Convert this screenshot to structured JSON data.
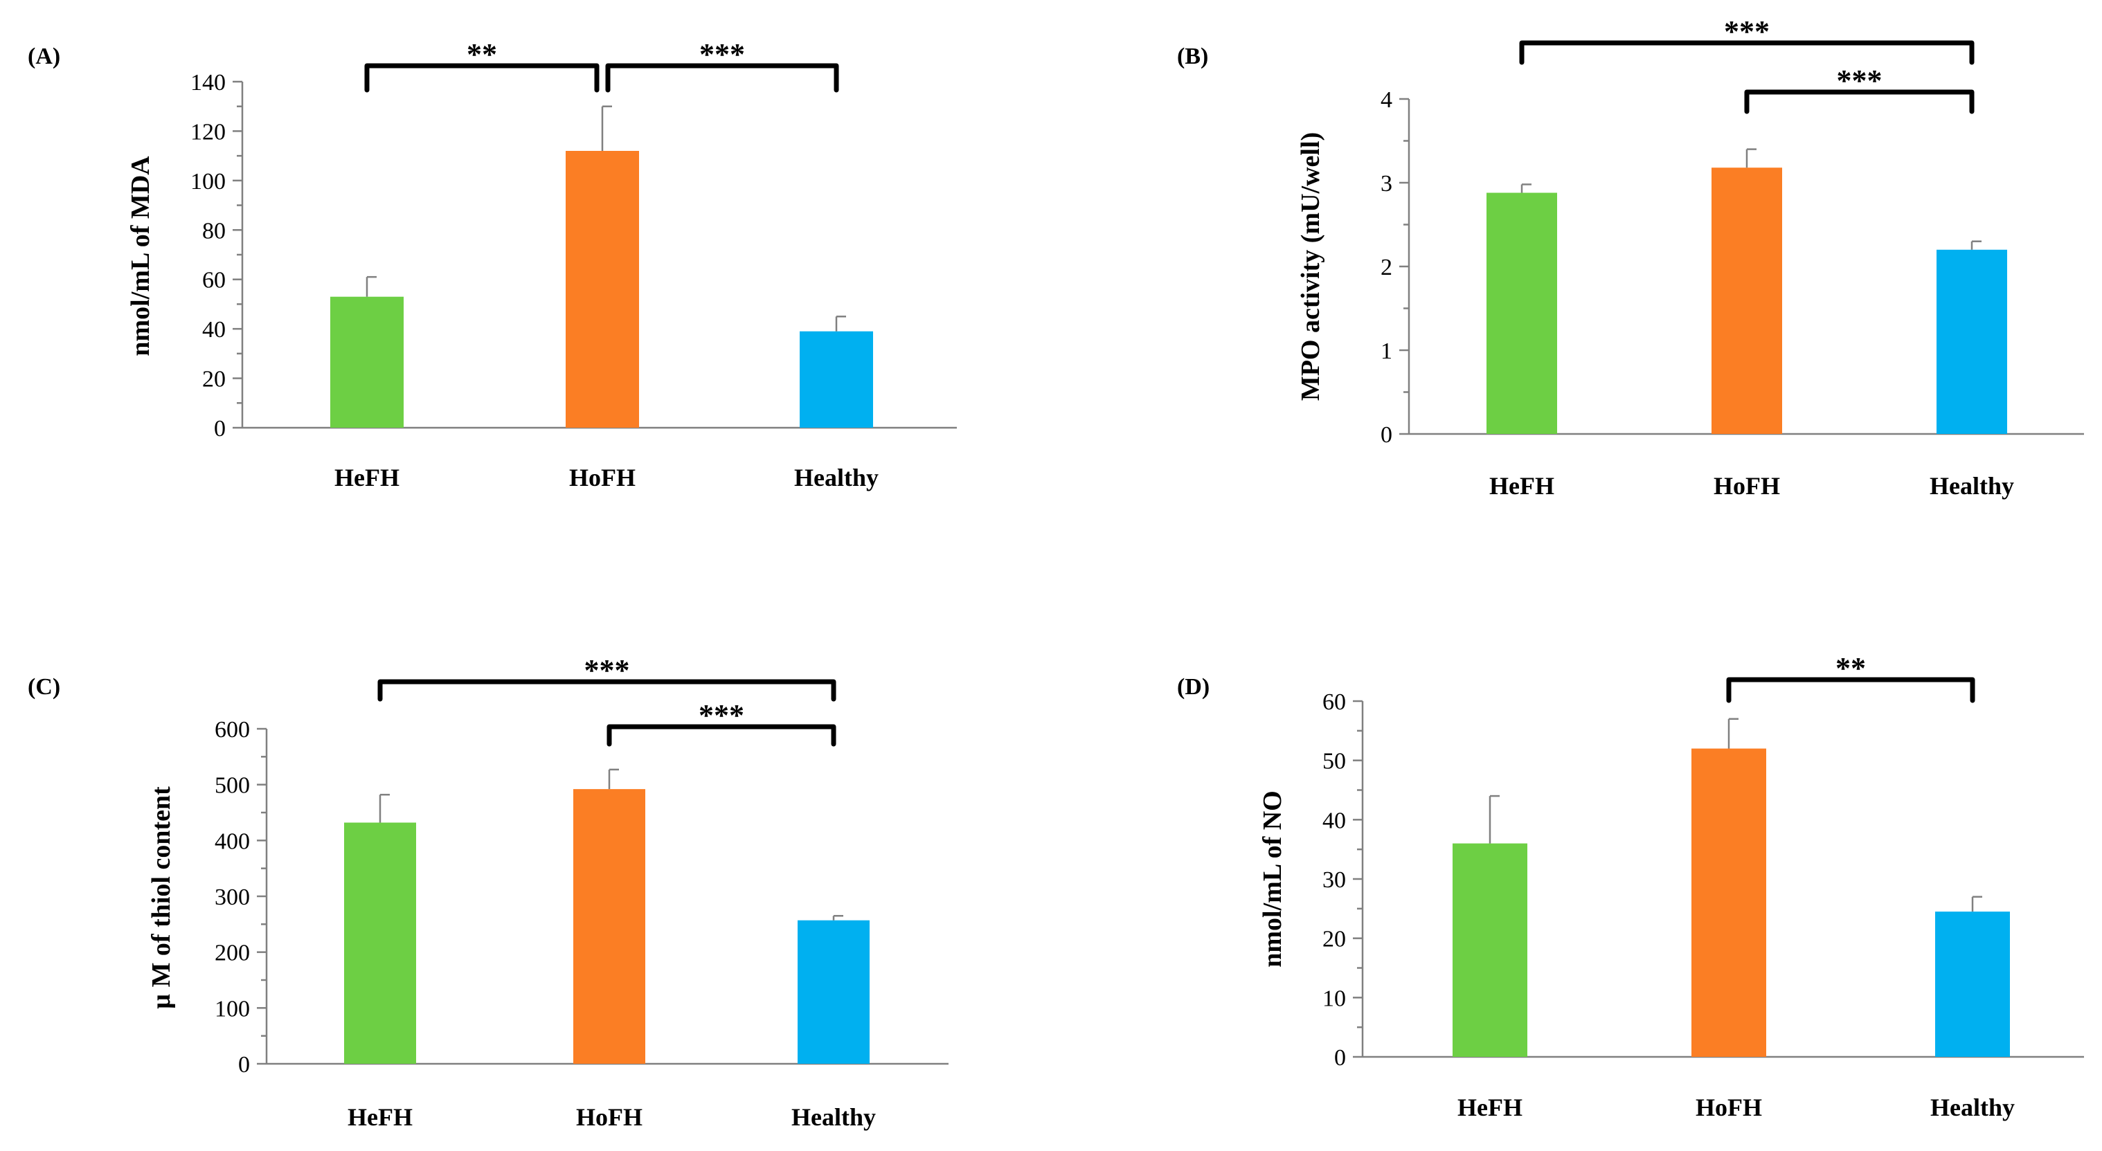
{
  "chart_data": [
    {
      "type": "bar",
      "panel": "(A)",
      "categories": [
        "HeFH",
        "HoFH",
        "Healthy"
      ],
      "values": [
        53,
        112,
        39
      ],
      "errors": [
        8,
        18,
        6
      ],
      "colors": [
        "#6dcf44",
        "#fb7e24",
        "#00b0f0"
      ],
      "ylabel": "nmol/mL of MDA",
      "ylim": [
        0,
        140
      ],
      "yticks": [
        0,
        20,
        40,
        60,
        80,
        100,
        120,
        140
      ],
      "minor_ticks": true,
      "significance": [
        {
          "from": 0,
          "to": 1,
          "label": "**"
        },
        {
          "from": 1,
          "to": 2,
          "label": "***"
        }
      ]
    },
    {
      "type": "bar",
      "panel": "(B)",
      "categories": [
        "HeFH",
        "HoFH",
        "Healthy"
      ],
      "values": [
        2.88,
        3.18,
        2.2
      ],
      "errors": [
        0.1,
        0.22,
        0.1
      ],
      "colors": [
        "#6dcf44",
        "#fb7e24",
        "#00b0f0"
      ],
      "ylabel": "MPO activity (mU/well)",
      "ylim": [
        0,
        4
      ],
      "yticks": [
        0,
        1,
        2,
        3,
        4
      ],
      "minor_ticks": true,
      "significance": [
        {
          "from": 0,
          "to": 2,
          "label": "***"
        },
        {
          "from": 1,
          "to": 2,
          "label": "***"
        }
      ]
    },
    {
      "type": "bar",
      "panel": "(C)",
      "categories": [
        "HeFH",
        "HoFH",
        "Healthy"
      ],
      "values": [
        432,
        492,
        257
      ],
      "errors": [
        50,
        35,
        8
      ],
      "colors": [
        "#6dcf44",
        "#fb7e24",
        "#00b0f0"
      ],
      "ylabel": "µ M of thiol content",
      "ylim": [
        0,
        600
      ],
      "yticks": [
        0,
        100,
        200,
        300,
        400,
        500,
        600
      ],
      "minor_ticks": true,
      "significance": [
        {
          "from": 0,
          "to": 2,
          "label": "***"
        },
        {
          "from": 1,
          "to": 2,
          "label": "***"
        }
      ]
    },
    {
      "type": "bar",
      "panel": "(D)",
      "categories": [
        "HeFH",
        "HoFH",
        "Healthy"
      ],
      "values": [
        36,
        52,
        24.5
      ],
      "errors": [
        8,
        5,
        2.5
      ],
      "colors": [
        "#6dcf44",
        "#fb7e24",
        "#00b0f0"
      ],
      "ylabel": "nmol/mL of NO",
      "ylim": [
        0,
        60
      ],
      "yticks": [
        0,
        10,
        20,
        30,
        40,
        50,
        60
      ],
      "minor_ticks": true,
      "significance": [
        {
          "from": 1,
          "to": 2,
          "label": "**"
        }
      ]
    }
  ]
}
